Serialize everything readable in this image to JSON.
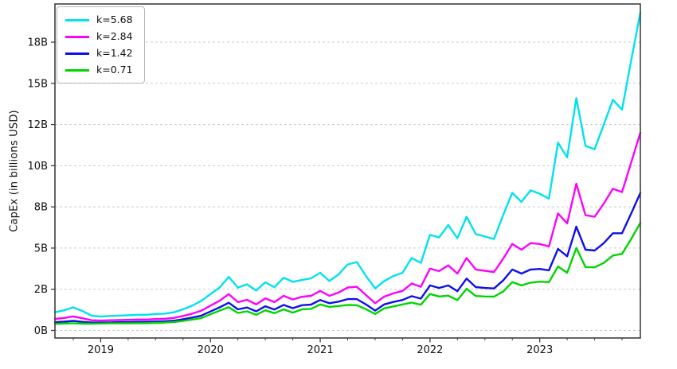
{
  "chart_data": {
    "type": "line",
    "title": "",
    "xlabel": "",
    "ylabel": "CapEx (in billions USD)",
    "grid": "horizontal-dashed",
    "legend_position": "upper-left",
    "ylim": [
      0,
      19.8
    ],
    "y_ticks": [
      {
        "value": 0.0,
        "label": "0B"
      },
      {
        "value": 2.5,
        "label": "2B"
      },
      {
        "value": 5.0,
        "label": "5B"
      },
      {
        "value": 7.5,
        "label": "8B"
      },
      {
        "value": 10.0,
        "label": "10B"
      },
      {
        "value": 12.5,
        "label": "12B"
      },
      {
        "value": 15.0,
        "label": "15B"
      },
      {
        "value": 17.5,
        "label": "18B"
      }
    ],
    "x_major_tick_labels": [
      "2019",
      "2020",
      "2021",
      "2022",
      "2023"
    ],
    "x": [
      "2018-08",
      "2018-09",
      "2018-10",
      "2018-11",
      "2018-12",
      "2019-01",
      "2019-02",
      "2019-03",
      "2019-04",
      "2019-05",
      "2019-06",
      "2019-07",
      "2019-08",
      "2019-09",
      "2019-10",
      "2019-11",
      "2019-12",
      "2020-01",
      "2020-02",
      "2020-03",
      "2020-04",
      "2020-05",
      "2020-06",
      "2020-07",
      "2020-08",
      "2020-09",
      "2020-10",
      "2020-11",
      "2020-12",
      "2021-01",
      "2021-02",
      "2021-03",
      "2021-04",
      "2021-05",
      "2021-06",
      "2021-07",
      "2021-08",
      "2021-09",
      "2021-10",
      "2021-11",
      "2021-12",
      "2022-01",
      "2022-02",
      "2022-03",
      "2022-04",
      "2022-05",
      "2022-06",
      "2022-07",
      "2022-08",
      "2022-09",
      "2022-10",
      "2022-11",
      "2022-12",
      "2023-01",
      "2023-02",
      "2023-03",
      "2023-04",
      "2023-05",
      "2023-06",
      "2023-07",
      "2023-08",
      "2023-09",
      "2023-10",
      "2023-11",
      "2023-12"
    ],
    "series": [
      {
        "name": "k=5.68",
        "k": 5.68,
        "color": "#00e2ee",
        "values": [
          1.1,
          1.22,
          1.4,
          1.18,
          0.9,
          0.84,
          0.88,
          0.9,
          0.92,
          0.95,
          0.95,
          1.0,
          1.02,
          1.1,
          1.28,
          1.5,
          1.8,
          2.2,
          2.6,
          3.25,
          2.6,
          2.8,
          2.42,
          2.92,
          2.62,
          3.2,
          2.95,
          3.06,
          3.16,
          3.5,
          3.0,
          3.4,
          4.0,
          4.15,
          3.3,
          2.55,
          3.0,
          3.3,
          3.5,
          4.4,
          4.1,
          5.8,
          5.65,
          6.4,
          5.6,
          6.9,
          5.85,
          5.7,
          5.55,
          7.0,
          8.35,
          7.8,
          8.5,
          8.3,
          8.0,
          11.4,
          10.5,
          14.1,
          11.2,
          11.0,
          12.5,
          14.0,
          13.4,
          16.4,
          19.3
        ]
      },
      {
        "name": "k=2.84",
        "k": 2.84,
        "color": "#fb02fb",
        "values": [
          0.7,
          0.76,
          0.85,
          0.74,
          0.62,
          0.6,
          0.62,
          0.63,
          0.64,
          0.66,
          0.66,
          0.69,
          0.71,
          0.76,
          0.88,
          1.02,
          1.2,
          1.5,
          1.8,
          2.2,
          1.72,
          1.86,
          1.58,
          1.95,
          1.72,
          2.1,
          1.88,
          2.04,
          2.1,
          2.4,
          2.1,
          2.3,
          2.6,
          2.65,
          2.15,
          1.65,
          2.05,
          2.25,
          2.4,
          2.85,
          2.65,
          3.75,
          3.6,
          3.95,
          3.45,
          4.4,
          3.7,
          3.62,
          3.55,
          4.35,
          5.25,
          4.9,
          5.3,
          5.25,
          5.1,
          7.1,
          6.5,
          8.9,
          7.0,
          6.9,
          7.7,
          8.6,
          8.4,
          10.2,
          12.0
        ]
      },
      {
        "name": "k=1.42",
        "k": 1.42,
        "color": "#0f10e6",
        "values": [
          0.5,
          0.53,
          0.58,
          0.52,
          0.48,
          0.48,
          0.49,
          0.5,
          0.5,
          0.52,
          0.52,
          0.54,
          0.56,
          0.59,
          0.68,
          0.78,
          0.9,
          1.15,
          1.4,
          1.68,
          1.28,
          1.39,
          1.16,
          1.47,
          1.27,
          1.55,
          1.35,
          1.53,
          1.57,
          1.85,
          1.65,
          1.75,
          1.9,
          1.9,
          1.58,
          1.2,
          1.58,
          1.73,
          1.85,
          2.08,
          1.93,
          2.73,
          2.58,
          2.73,
          2.38,
          3.15,
          2.63,
          2.58,
          2.55,
          3.03,
          3.7,
          3.45,
          3.7,
          3.73,
          3.65,
          4.95,
          4.5,
          6.3,
          4.9,
          4.85,
          5.3,
          5.9,
          5.9,
          7.1,
          8.35
        ]
      },
      {
        "name": "k=0.71",
        "k": 0.71,
        "color": "#00d500",
        "values": [
          0.4,
          0.42,
          0.44,
          0.41,
          0.41,
          0.42,
          0.43,
          0.43,
          0.43,
          0.44,
          0.44,
          0.46,
          0.48,
          0.51,
          0.58,
          0.66,
          0.75,
          0.98,
          1.2,
          1.41,
          1.06,
          1.16,
          0.95,
          1.22,
          1.05,
          1.28,
          1.08,
          1.28,
          1.31,
          1.58,
          1.43,
          1.48,
          1.55,
          1.53,
          1.29,
          1.0,
          1.34,
          1.46,
          1.58,
          1.69,
          1.56,
          2.21,
          2.06,
          2.11,
          1.84,
          2.53,
          2.09,
          2.06,
          2.05,
          2.36,
          2.93,
          2.73,
          2.9,
          2.96,
          2.93,
          3.88,
          3.5,
          5.0,
          3.85,
          3.83,
          4.1,
          4.55,
          4.65,
          5.55,
          6.53
        ]
      }
    ],
    "style": {
      "grid_color": "#c9c9c9",
      "frame_color": "#3f3f3f",
      "tick_color": "#3f3f3f",
      "background": "#ffffff",
      "line_width": 2.4
    }
  }
}
